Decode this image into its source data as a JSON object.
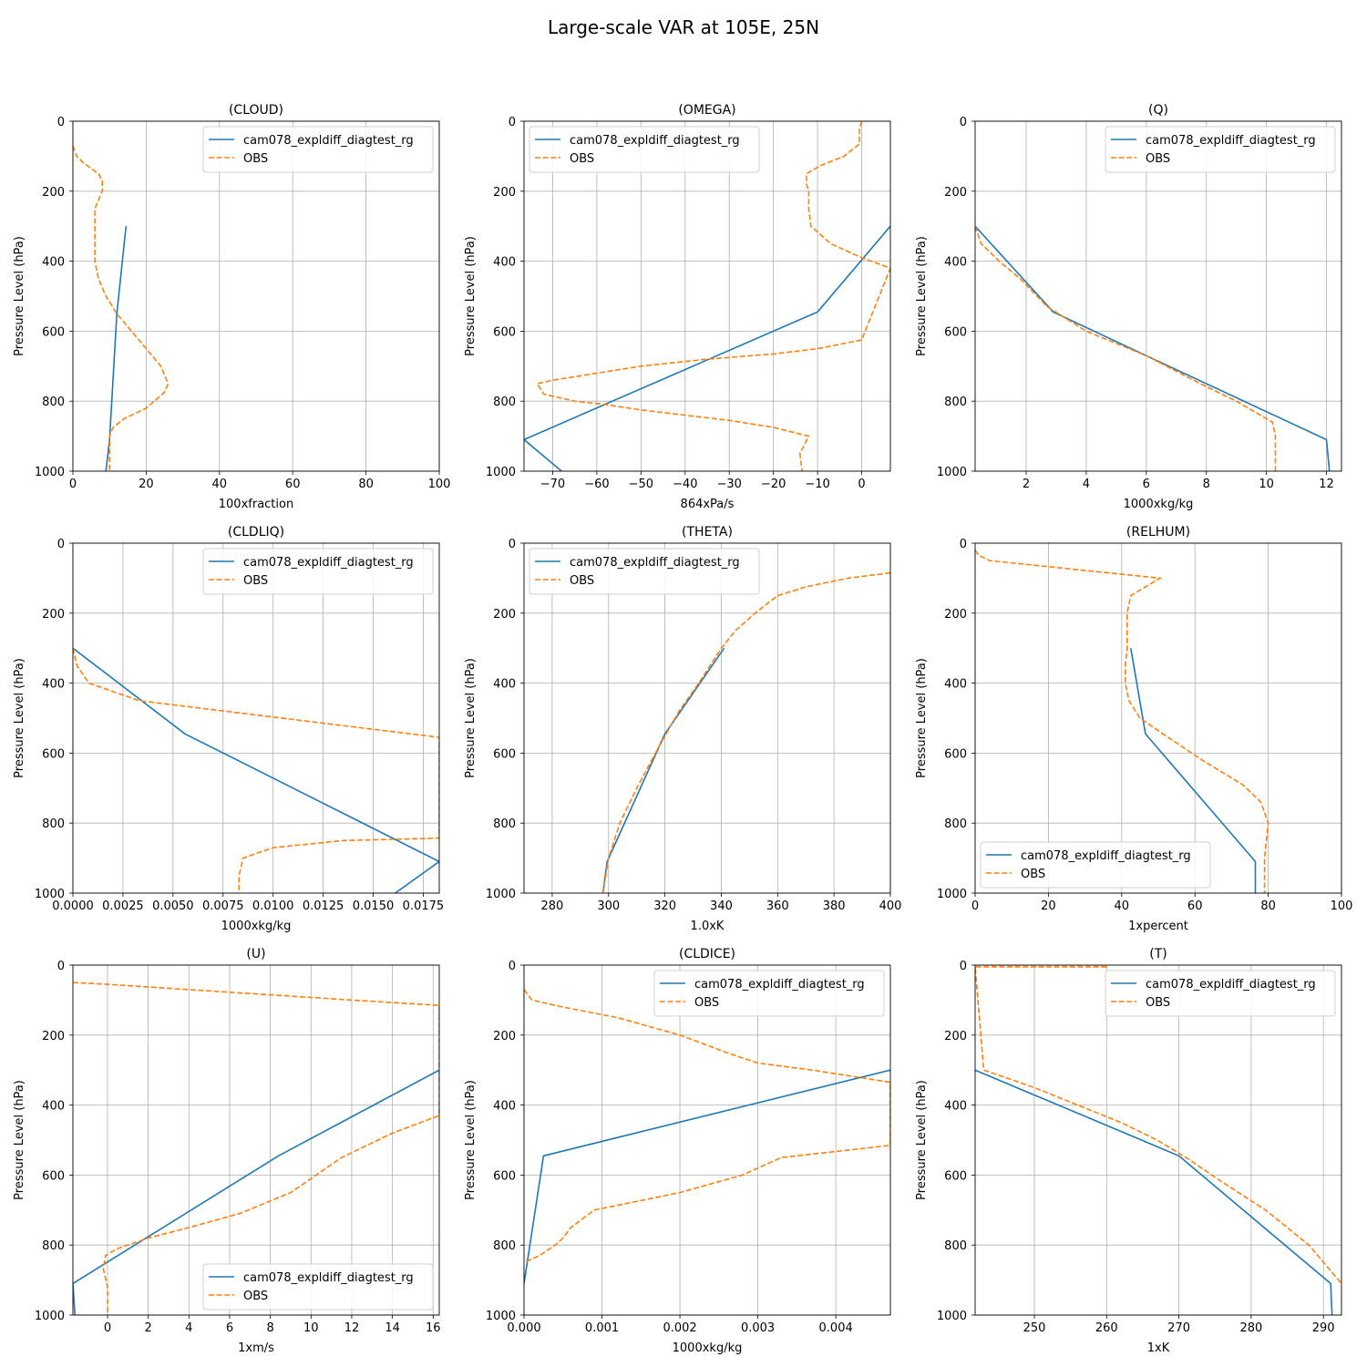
{
  "suptitle": "Large-scale VAR at 105E, 25N",
  "colors": {
    "model": "#1f77b4",
    "obs": "#ff7f0e",
    "grid": "#b0b0b0"
  },
  "chart_data": [
    {
      "type": "line",
      "title": "(CLOUD)",
      "xlabel": "100xfraction",
      "ylabel": "Pressure Level (hPa)",
      "xlim": [
        0,
        100
      ],
      "ylim": [
        1000,
        0
      ],
      "xticks": [
        0,
        20,
        40,
        60,
        80,
        100
      ],
      "xtick_labels": [
        "0",
        "20",
        "40",
        "60",
        "80",
        "100"
      ],
      "yticks": [
        0,
        200,
        400,
        600,
        800,
        1000
      ],
      "grid": true,
      "legend": "upper right",
      "series": [
        {
          "name": "cam078_expldiff_diagtest_rg",
          "style": "solid",
          "x": [
            14.5,
            12,
            10,
            9
          ],
          "y": [
            300,
            550,
            910,
            1000
          ]
        },
        {
          "name": "OBS",
          "style": "dashed",
          "x": [
            0,
            1,
            3,
            7,
            8,
            8,
            6,
            6,
            6,
            6,
            7,
            9,
            12,
            16,
            20,
            24,
            26,
            25,
            20,
            14,
            11,
            10,
            10,
            10
          ],
          "y": [
            70,
            100,
            120,
            150,
            170,
            200,
            250,
            300,
            350,
            400,
            450,
            500,
            550,
            600,
            650,
            700,
            750,
            775,
            820,
            850,
            875,
            900,
            950,
            1000
          ]
        }
      ]
    },
    {
      "type": "line",
      "title": "(OMEGA)",
      "xlabel": "864xPa/s",
      "ylabel": "Pressure Level (hPa)",
      "xlim": [
        -76.5,
        6.5
      ],
      "ylim": [
        1000,
        0
      ],
      "xticks": [
        -70,
        -60,
        -50,
        -40,
        -30,
        -20,
        -10,
        0
      ],
      "xtick_labels": [
        "−70",
        "−60",
        "−50",
        "−40",
        "−30",
        "−20",
        "−10",
        "0"
      ],
      "yticks": [
        0,
        200,
        400,
        600,
        800,
        1000
      ],
      "grid": true,
      "legend": "upper left",
      "series": [
        {
          "name": "cam078_expldiff_diagtest_rg",
          "style": "solid",
          "x": [
            6.5,
            -10,
            -76.5,
            -68
          ],
          "y": [
            300,
            545,
            910,
            1000
          ]
        },
        {
          "name": "OBS",
          "style": "dashed",
          "x": [
            0,
            -0.5,
            -0.5,
            -4,
            -9,
            -12.5,
            -12.5,
            -12,
            -12,
            -11.5,
            -7,
            0,
            6.5,
            6.5,
            0,
            -10,
            -20,
            -35,
            -50,
            -60,
            -70,
            -73.5,
            -72,
            -65,
            -58,
            -50,
            -40,
            -30,
            -20,
            -12,
            -14,
            -13.5
          ],
          "y": [
            0,
            20,
            65,
            100,
            125,
            150,
            180,
            200,
            250,
            300,
            350,
            390,
            420,
            420,
            625,
            650,
            665,
            680,
            700,
            720,
            740,
            750,
            780,
            800,
            810,
            825,
            840,
            855,
            875,
            900,
            950,
            1000
          ]
        }
      ]
    },
    {
      "type": "line",
      "title": "(Q)",
      "xlabel": "1000xkg/kg",
      "ylabel": "Pressure Level (hPa)",
      "xlim": [
        0.3,
        12.5
      ],
      "ylim": [
        1000,
        0
      ],
      "xticks": [
        2,
        4,
        6,
        8,
        10,
        12
      ],
      "xtick_labels": [
        "2",
        "4",
        "6",
        "8",
        "10",
        "12"
      ],
      "yticks": [
        0,
        200,
        400,
        600,
        800,
        1000
      ],
      "grid": true,
      "legend": "upper right",
      "series": [
        {
          "name": "cam078_expldiff_diagtest_rg",
          "style": "solid",
          "x": [
            0.3,
            2.9,
            6.0,
            12.0,
            12.1
          ],
          "y": [
            300,
            545,
            670,
            910,
            1000
          ]
        },
        {
          "name": "OBS",
          "style": "dashed",
          "x": [
            0.3,
            0.5,
            1.1,
            1.8,
            2.7,
            4.0,
            6.0,
            7.8,
            9.0,
            9.8,
            10.2,
            10.3,
            10.3
          ],
          "y": [
            300,
            350,
            400,
            450,
            530,
            600,
            670,
            750,
            800,
            840,
            860,
            900,
            1000
          ]
        }
      ]
    },
    {
      "type": "line",
      "title": "(CLDLIQ)",
      "xlabel": "1000xkg/kg",
      "ylabel": "Pressure Level (hPa)",
      "xlim": [
        0,
        0.0183
      ],
      "ylim": [
        1000,
        0
      ],
      "xticks": [
        0,
        0.0025,
        0.005,
        0.0075,
        0.01,
        0.0125,
        0.015,
        0.0175
      ],
      "xtick_labels": [
        "0.0000",
        "0.0025",
        "0.0050",
        "0.0075",
        "0.0100",
        "0.0125",
        "0.0150",
        "0.0175"
      ],
      "yticks": [
        0,
        200,
        400,
        600,
        800,
        1000
      ],
      "grid": true,
      "legend": "upper right",
      "series": [
        {
          "name": "cam078_expldiff_diagtest_rg",
          "style": "solid",
          "x": [
            0,
            0.0056,
            0.0183,
            0.0161
          ],
          "y": [
            300,
            545,
            910,
            1000
          ]
        },
        {
          "name": "OBS",
          "style": "dashed",
          "x": [
            0,
            0.0002,
            0.0008,
            0.0033,
            0.0183,
            0.0183,
            0.0135,
            0.01,
            0.0085,
            0.0083,
            0.0083
          ],
          "y": [
            300,
            350,
            400,
            450,
            555,
            843,
            850,
            870,
            900,
            950,
            1000
          ]
        }
      ]
    },
    {
      "type": "line",
      "title": "(THETA)",
      "xlabel": "1.0xK",
      "ylabel": "Pressure Level (hPa)",
      "xlim": [
        270,
        400
      ],
      "ylim": [
        1000,
        0
      ],
      "xticks": [
        280,
        300,
        320,
        340,
        360,
        380,
        400
      ],
      "xtick_labels": [
        "280",
        "300",
        "320",
        "340",
        "360",
        "380",
        "400"
      ],
      "yticks": [
        0,
        200,
        400,
        600,
        800,
        1000
      ],
      "grid": true,
      "legend": "upper left",
      "series": [
        {
          "name": "cam078_expldiff_diagtest_rg",
          "style": "solid",
          "x": [
            341,
            320,
            299.5,
            298
          ],
          "y": [
            300,
            545,
            910,
            1000
          ]
        },
        {
          "name": "OBS",
          "style": "dashed",
          "x": [
            400,
            385,
            370,
            360,
            352,
            345,
            340,
            332,
            325,
            318,
            310,
            304,
            300,
            298
          ],
          "y": [
            85,
            100,
            125,
            150,
            200,
            250,
            300,
            400,
            480,
            580,
            700,
            800,
            900,
            1000
          ]
        }
      ]
    },
    {
      "type": "line",
      "title": "(RELHUM)",
      "xlabel": "1xpercent",
      "ylabel": "Pressure Level (hPa)",
      "xlim": [
        0,
        100
      ],
      "ylim": [
        1000,
        0
      ],
      "xticks": [
        0,
        20,
        40,
        60,
        80,
        100
      ],
      "xtick_labels": [
        "0",
        "20",
        "40",
        "60",
        "80",
        "100"
      ],
      "yticks": [
        0,
        200,
        400,
        600,
        800,
        1000
      ],
      "grid": true,
      "legend": "lower left",
      "series": [
        {
          "name": "cam078_expldiff_diagtest_rg",
          "style": "solid",
          "x": [
            42.5,
            46.5,
            76.5,
            76.5
          ],
          "y": [
            300,
            545,
            910,
            1000
          ]
        },
        {
          "name": "OBS",
          "style": "dashed",
          "x": [
            0,
            1,
            4,
            50.5,
            42.5,
            41.5,
            41.5,
            41.5,
            41,
            41,
            42,
            45,
            52,
            62,
            73,
            78,
            80,
            79.5,
            79,
            79,
            79
          ],
          "y": [
            20,
            35,
            50,
            100,
            150,
            200,
            250,
            300,
            350,
            400,
            450,
            500,
            550,
            620,
            690,
            740,
            800,
            850,
            900,
            950,
            1000
          ]
        }
      ]
    },
    {
      "type": "line",
      "title": "(U)",
      "xlabel": "1xm/s",
      "ylabel": "Pressure Level (hPa)",
      "xlim": [
        -1.7,
        16.3
      ],
      "ylim": [
        1000,
        0
      ],
      "xticks": [
        0,
        2,
        4,
        6,
        8,
        10,
        12,
        14,
        16
      ],
      "xtick_labels": [
        "0",
        "2",
        "4",
        "6",
        "8",
        "10",
        "12",
        "14",
        "16"
      ],
      "yticks": [
        0,
        200,
        400,
        600,
        800,
        1000
      ],
      "grid": true,
      "legend": "lower right",
      "series": [
        {
          "name": "cam078_expldiff_diagtest_rg",
          "style": "solid",
          "x": [
            16.3,
            8.4,
            -1.7,
            -1.6
          ],
          "y": [
            300,
            545,
            910,
            1000
          ]
        },
        {
          "name": "OBS",
          "style": "dashed",
          "x": [
            -1.7,
            0,
            4,
            8,
            12,
            16.3,
            16.3,
            14,
            11.5,
            9,
            6.5,
            4,
            2,
            0.5,
            -0.1,
            -0.2,
            0,
            0
          ],
          "y": [
            50,
            55,
            70,
            85,
            100,
            115,
            430,
            480,
            550,
            650,
            710,
            750,
            780,
            810,
            830,
            870,
            920,
            1000
          ]
        }
      ]
    },
    {
      "type": "line",
      "title": "(CLDICE)",
      "xlabel": "1000xkg/kg",
      "ylabel": "Pressure Level (hPa)",
      "xlim": [
        0,
        0.0047
      ],
      "ylim": [
        1000,
        0
      ],
      "xticks": [
        0,
        0.001,
        0.002,
        0.003,
        0.004
      ],
      "xtick_labels": [
        "0.000",
        "0.001",
        "0.002",
        "0.003",
        "0.004"
      ],
      "yticks": [
        0,
        200,
        400,
        600,
        800,
        1000
      ],
      "grid": true,
      "legend": "upper right",
      "series": [
        {
          "name": "cam078_expldiff_diagtest_rg",
          "style": "solid",
          "x": [
            0.0047,
            0.00025,
            0
          ],
          "y": [
            300,
            545,
            910
          ]
        },
        {
          "name": "OBS",
          "style": "dashed",
          "x": [
            0,
            0.0001,
            0.0005,
            0.0012,
            0.002,
            0.0026,
            0.003,
            0.0037,
            0.0047,
            0.0047,
            0.0033,
            0.0028,
            0.002,
            0.0009,
            0.0006,
            0.0005,
            0.0004,
            0.0002,
            0
          ],
          "y": [
            70,
            100,
            120,
            150,
            200,
            250,
            280,
            300,
            335,
            515,
            550,
            600,
            650,
            700,
            750,
            780,
            800,
            830,
            850
          ]
        }
      ]
    },
    {
      "type": "line",
      "title": "(T)",
      "xlabel": "1xK",
      "ylabel": "Pressure Level (hPa)",
      "xlim": [
        241.8,
        292.5
      ],
      "ylim": [
        1000,
        0
      ],
      "xticks": [
        250,
        260,
        270,
        280,
        290
      ],
      "xtick_labels": [
        "250",
        "260",
        "270",
        "280",
        "290"
      ],
      "yticks": [
        0,
        200,
        400,
        600,
        800,
        1000
      ],
      "grid": true,
      "legend": "upper right",
      "series": [
        {
          "name": "cam078_expldiff_diagtest_rg",
          "style": "solid",
          "x": [
            241.8,
            270,
            291,
            291.2
          ],
          "y": [
            300,
            545,
            910,
            1000
          ]
        },
        {
          "name": "OBS",
          "style": "dashed",
          "x": [
            241.8,
            260,
            260,
            241.8,
            243,
            250,
            256,
            262,
            267,
            271,
            276,
            282,
            288,
            292.5
          ],
          "y": [
            0,
            0,
            5,
            5,
            300,
            350,
            400,
            450,
            500,
            550,
            620,
            700,
            800,
            910
          ]
        }
      ]
    }
  ]
}
